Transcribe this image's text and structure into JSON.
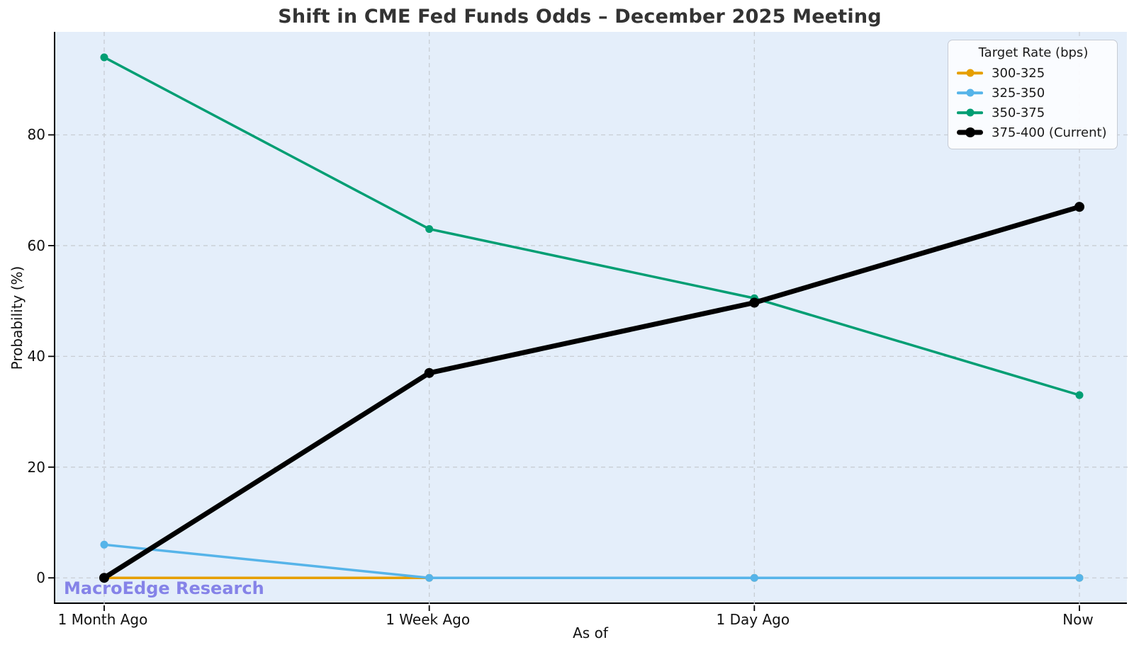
{
  "title": "Shift in CME Fed Funds Odds – December 2025 Meeting",
  "watermark": {
    "text": "MacroEdge Research",
    "color": "#8583e8"
  },
  "chart_data": {
    "type": "line",
    "title": "Shift in CME Fed Funds Odds – December 2025 Meeting",
    "xlabel": "As of",
    "ylabel": "Probability (%)",
    "categories": [
      "1 Month Ago",
      "1 Week Ago",
      "1 Day Ago",
      "Now"
    ],
    "y_ticks": [
      0,
      20,
      40,
      60,
      80
    ],
    "ylim": [
      -4.7,
      98.6
    ],
    "grid": true,
    "plot_background": "#e4eefa",
    "gridline_color": "#c8cdd4",
    "legend": {
      "title": "Target Rate (bps)",
      "position": "upper right"
    },
    "series": [
      {
        "name": "300-325",
        "color": "#E69F00",
        "line_width": 3.5,
        "marker_radius": 5.5,
        "values": [
          0,
          0,
          0,
          0
        ]
      },
      {
        "name": "325-350",
        "color": "#56B4E9",
        "line_width": 3.5,
        "marker_radius": 5.5,
        "values": [
          6,
          0,
          0,
          0
        ]
      },
      {
        "name": "350-375",
        "color": "#009E73",
        "line_width": 3.5,
        "marker_radius": 5.5,
        "values": [
          94,
          63,
          50.5,
          33
        ]
      },
      {
        "name": "375-400 (Current)",
        "color": "#000000",
        "line_width": 7,
        "marker_radius": 7,
        "values": [
          0,
          37,
          49.7,
          67
        ]
      }
    ]
  }
}
